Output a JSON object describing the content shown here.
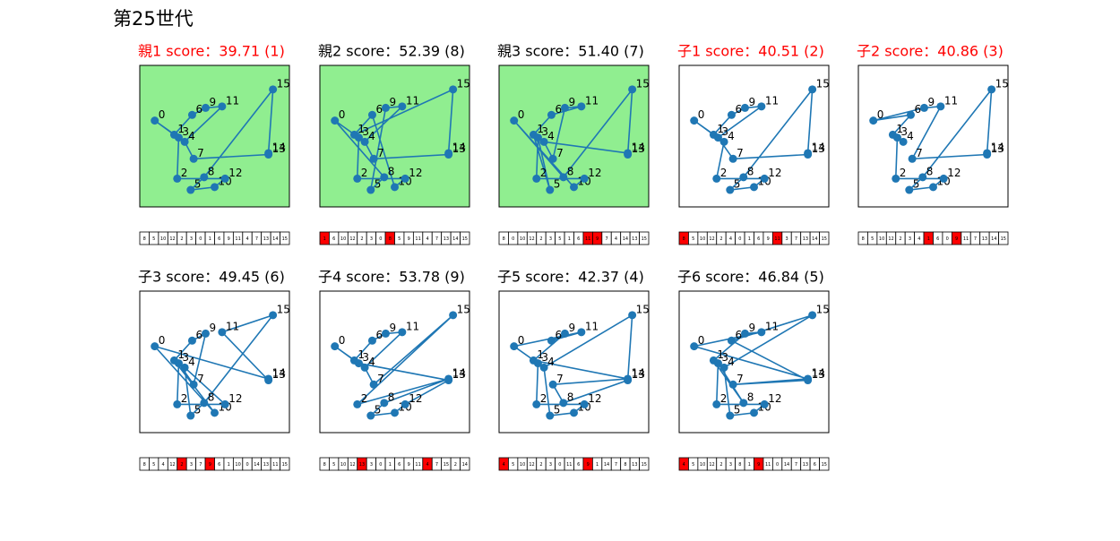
{
  "title": "第25世代",
  "xlim": [
    0,
    100
  ],
  "ylim": [
    0,
    100
  ],
  "cities": [
    {
      "label": "0",
      "x": 10,
      "y": 61
    },
    {
      "label": "1",
      "x": 23,
      "y": 51
    },
    {
      "label": "2",
      "x": 25,
      "y": 20
    },
    {
      "label": "3",
      "x": 26,
      "y": 49
    },
    {
      "label": "4",
      "x": 30,
      "y": 46
    },
    {
      "label": "5",
      "x": 34,
      "y": 12
    },
    {
      "label": "6",
      "x": 35,
      "y": 65
    },
    {
      "label": "7",
      "x": 36,
      "y": 34
    },
    {
      "label": "8",
      "x": 43,
      "y": 21
    },
    {
      "label": "9",
      "x": 44,
      "y": 70
    },
    {
      "label": "10",
      "x": 50,
      "y": 14
    },
    {
      "label": "11",
      "x": 55,
      "y": 71
    },
    {
      "label": "12",
      "x": 57,
      "y": 20
    },
    {
      "label": "13",
      "x": 86,
      "y": 37
    },
    {
      "label": "14",
      "x": 86,
      "y": 38
    },
    {
      "label": "15",
      "x": 89,
      "y": 83
    }
  ],
  "line_color": "#1f77b4",
  "parent_background": "#90ee90",
  "highlight_color": "#ff0000",
  "panels": [
    {
      "title": "親1 score：39.71 (1)",
      "title_color": "#ff0000",
      "parent": true,
      "route": [
        8,
        5,
        10,
        12,
        2,
        3,
        0,
        1,
        6,
        9,
        11,
        4,
        7,
        13,
        14,
        15
      ],
      "mutations": []
    },
    {
      "title": "親2 score：52.39 (8)",
      "title_color": "#000000",
      "parent": true,
      "route": [
        1,
        6,
        10,
        12,
        2,
        3,
        0,
        8,
        5,
        9,
        11,
        4,
        7,
        13,
        14,
        15
      ],
      "mutations": [
        0,
        7
      ]
    },
    {
      "title": "親3 score：51.40 (7)",
      "title_color": "#000000",
      "parent": true,
      "route": [
        8,
        0,
        10,
        12,
        2,
        3,
        5,
        1,
        6,
        11,
        9,
        7,
        4,
        14,
        13,
        15
      ],
      "mutations": [
        9,
        10
      ]
    },
    {
      "title": "子1 score：40.51 (2)",
      "title_color": "#ff0000",
      "parent": false,
      "route": [
        8,
        5,
        10,
        12,
        2,
        4,
        0,
        1,
        6,
        9,
        11,
        3,
        7,
        13,
        14,
        15
      ],
      "mutations": [
        0,
        10
      ]
    },
    {
      "title": "子2 score：40.86 (3)",
      "title_color": "#ff0000",
      "parent": false,
      "route": [
        8,
        5,
        10,
        12,
        2,
        3,
        4,
        1,
        6,
        0,
        9,
        11,
        7,
        13,
        14,
        15
      ],
      "mutations": [
        7,
        10
      ]
    },
    {
      "title": "子3 score：49.45 (6)",
      "title_color": "#000000",
      "parent": false,
      "route": [
        8,
        5,
        4,
        12,
        2,
        3,
        7,
        9,
        6,
        1,
        10,
        0,
        14,
        13,
        11,
        15
      ],
      "mutations": [
        4,
        7
      ]
    },
    {
      "title": "子4 score：53.78 (9)",
      "title_color": "#000000",
      "parent": false,
      "route": [
        8,
        5,
        10,
        12,
        13,
        3,
        0,
        1,
        6,
        9,
        11,
        4,
        7,
        15,
        2,
        14
      ],
      "mutations": [
        4,
        11
      ]
    },
    {
      "title": "子5 score：42.37 (4)",
      "title_color": "#000000",
      "parent": false,
      "route": [
        4,
        5,
        10,
        12,
        2,
        3,
        0,
        11,
        6,
        9,
        1,
        14,
        7,
        8,
        13,
        15
      ],
      "mutations": [
        0,
        9
      ]
    },
    {
      "title": "子6 score：46.84 (5)",
      "title_color": "#000000",
      "parent": false,
      "route": [
        4,
        5,
        10,
        12,
        2,
        3,
        8,
        1,
        9,
        11,
        0,
        14,
        7,
        13,
        6,
        15
      ],
      "mutations": [
        0,
        8
      ]
    }
  ]
}
